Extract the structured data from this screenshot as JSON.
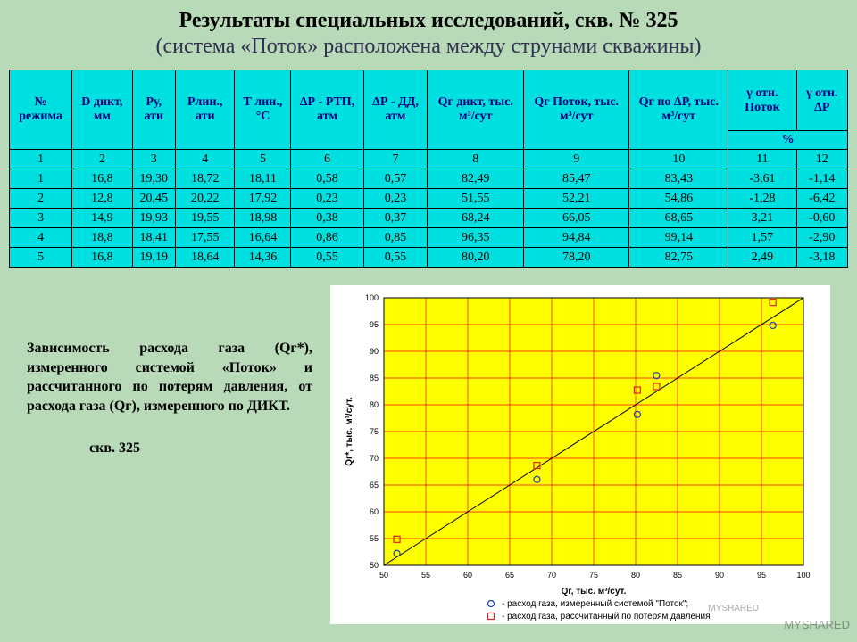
{
  "title": {
    "line1": "Результаты специальных исследований, скв. № 325",
    "line2": "(система «Поток» расположена между струнами скважины)"
  },
  "table": {
    "header_bg": "#00e0e0",
    "cell_bg": "#00e0e0",
    "header_color": "#00007a",
    "cell_color": "#000000",
    "border_color": "#000000",
    "columns": [
      "№ режима",
      "D дикт, мм",
      "Ру, ати",
      "Рлин., ати",
      "Т лин., °С",
      "ΔР - РТП, атм",
      "ΔР - ДД, атм",
      "Qг дикт, тыс. м³/сут",
      "Qг Поток, тыс. м³/сут",
      "Qг по ΔР, тыс. м³/сут",
      "γ отн. Поток",
      "γ отн. ΔР"
    ],
    "index_row": [
      "1",
      "2",
      "3",
      "4",
      "5",
      "6",
      "7",
      "8",
      "9",
      "10",
      "11",
      "12"
    ],
    "rows": [
      [
        "1",
        "16,8",
        "19,30",
        "18,72",
        "18,11",
        "0,58",
        "0,57",
        "82,49",
        "85,47",
        "83,43",
        "-3,61",
        "-1,14"
      ],
      [
        "2",
        "12,8",
        "20,45",
        "20,22",
        "17,92",
        "0,23",
        "0,23",
        "51,55",
        "52,21",
        "54,86",
        "-1,28",
        "-6,42"
      ],
      [
        "3",
        "14,9",
        "19,93",
        "19,55",
        "18,98",
        "0,38",
        "0,37",
        "68,24",
        "66,05",
        "68,65",
        "3,21",
        "-0,60"
      ],
      [
        "4",
        "18,8",
        "18,41",
        "17,55",
        "16,64",
        "0,86",
        "0,85",
        "96,35",
        "94,84",
        "99,14",
        "1,57",
        "-2,90"
      ],
      [
        "5",
        "16,8",
        "19,19",
        "18,64",
        "14,36",
        "0,55",
        "0,55",
        "80,20",
        "78,20",
        "82,75",
        "2,49",
        "-3,18"
      ]
    ],
    "percent_label": "%"
  },
  "caption": {
    "text": "Зависимость расхода газа (Qг*), измеренного системой «Поток» и рассчитанного по потерям давления, от расхода газа (Qг), измеренного по ДИКТ.",
    "sub": "скв. 325"
  },
  "chart": {
    "type": "scatter",
    "background": "#ffffff",
    "plot_bg": "#ffff00",
    "grid_color": "#ff0000",
    "axis_color": "#000000",
    "xlabel": "Qг, тыс. м³/сут.",
    "ylabel": "Qг*, тыс. м³/сут.",
    "label_fontsize": 10,
    "tick_fontsize": 9,
    "xlim": [
      50,
      100
    ],
    "ylim": [
      50,
      100
    ],
    "xtick_step": 5,
    "ytick_step": 5,
    "marker_size": 5,
    "line_color": "#000000",
    "line_width": 1,
    "line": {
      "x1": 50,
      "y1": 50,
      "x2": 100,
      "y2": 100
    },
    "series": [
      {
        "name": "Поток",
        "marker": "circle",
        "color": "#1040c0",
        "fill": "none",
        "legend": "- расход газа, измеренный системой \"Поток\";",
        "points": [
          {
            "x": 82.49,
            "y": 85.47
          },
          {
            "x": 51.55,
            "y": 52.21
          },
          {
            "x": 68.24,
            "y": 66.05
          },
          {
            "x": 96.35,
            "y": 94.84
          },
          {
            "x": 80.2,
            "y": 78.2
          }
        ]
      },
      {
        "name": "ΔР",
        "marker": "square",
        "color": "#e02020",
        "fill": "none",
        "legend": "- расход газа, рассчитанный по потерям давления",
        "points": [
          {
            "x": 82.49,
            "y": 83.43
          },
          {
            "x": 51.55,
            "y": 54.86
          },
          {
            "x": 68.24,
            "y": 68.65
          },
          {
            "x": 96.35,
            "y": 99.14
          },
          {
            "x": 80.2,
            "y": 82.75
          }
        ]
      }
    ]
  },
  "watermarks": {
    "w1": "MYSHARED",
    "w2": "MYSHARED"
  }
}
